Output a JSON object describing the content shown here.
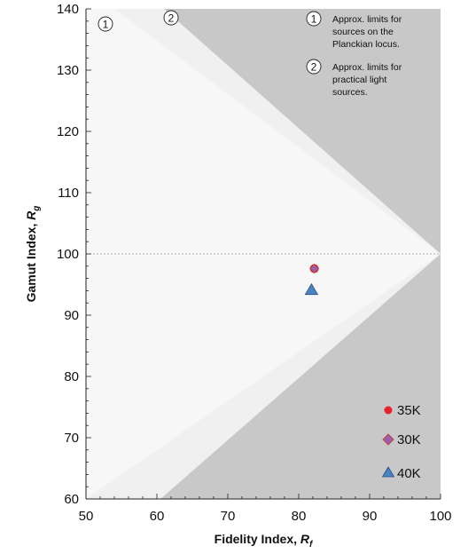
{
  "chart_data": {
    "type": "scatter",
    "title": "",
    "xlabel": "Fidelity Index, ",
    "xlabel_sub": "f",
    "xlabel_var": "R",
    "ylabel": "Gamut Index, ",
    "ylabel_var": "R",
    "ylabel_sub": "g",
    "xlim": [
      50,
      100
    ],
    "ylim": [
      60,
      140
    ],
    "x_ticks": [
      50,
      60,
      70,
      80,
      90,
      100
    ],
    "y_ticks": [
      60,
      70,
      80,
      90,
      100,
      110,
      120,
      130,
      140
    ],
    "reference_line_y": 100,
    "regions": {
      "outer_limit_vertices": [
        [
          50,
          140
        ],
        [
          61,
          140
        ],
        [
          100,
          100
        ],
        [
          60.5,
          60
        ],
        [
          50,
          60
        ]
      ],
      "inner_limit_vertices": [
        [
          50,
          140
        ],
        [
          54,
          140
        ],
        [
          100,
          100
        ],
        [
          50,
          60
        ]
      ],
      "colors": {
        "background": "#c8c8c8",
        "practical": "#f0f0f0",
        "planckian": "#f7f7f7"
      }
    },
    "series": [
      {
        "name": "35K",
        "marker": "circle",
        "color": "#e8242b",
        "points": [
          {
            "x": 82.2,
            "y": 97.6
          }
        ]
      },
      {
        "name": "30K",
        "marker": "diamond",
        "color": "#9a5fa8",
        "points": [
          {
            "x": 82.2,
            "y": 97.6
          }
        ]
      },
      {
        "name": "40K",
        "marker": "triangle",
        "color": "#4a82c4",
        "points": [
          {
            "x": 81.8,
            "y": 94.1
          }
        ]
      }
    ],
    "annotations": {
      "marker_1": "1",
      "marker_2": "2",
      "note_1": [
        "Approx. limits for",
        "sources on the",
        "Planckian locus."
      ],
      "note_2": [
        "Approx. limits for",
        "practical light",
        "sources."
      ]
    },
    "legend": {
      "placement": "bottom-right",
      "entries": [
        {
          "label": "35K",
          "marker": "circle",
          "color": "#e8242b"
        },
        {
          "label": "30K",
          "marker": "diamond",
          "color": "#9a5fa8"
        },
        {
          "label": "40K",
          "marker": "triangle",
          "color": "#4a82c4"
        }
      ]
    }
  }
}
